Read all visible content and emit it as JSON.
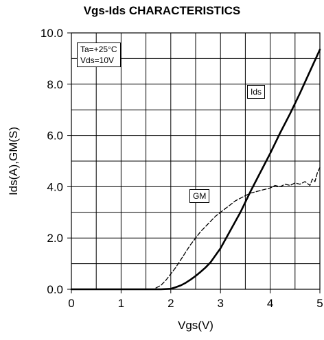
{
  "chart_data": {
    "type": "line",
    "title": "Vgs-Ids CHARACTERISTICS",
    "xlabel": "Vgs(V)",
    "ylabel": "Ids(A),GM(S)",
    "xlim": [
      0,
      5
    ],
    "ylim": [
      0,
      10
    ],
    "x_ticks": [
      "0",
      "1",
      "2",
      "3",
      "4",
      "5"
    ],
    "y_ticks": [
      "0.0",
      "2.0",
      "4.0",
      "6.0",
      "8.0",
      "10.0"
    ],
    "grid": true,
    "conditions": [
      "Ta=+25°C",
      "Vds=10V"
    ],
    "series": [
      {
        "name": "Ids",
        "style": "solid",
        "color": "#000000",
        "x": [
          0,
          1.0,
          1.8,
          2.0,
          2.1,
          2.2,
          2.3,
          2.4,
          2.5,
          2.6,
          2.7,
          2.8,
          3.0,
          3.2,
          3.4,
          3.6,
          3.8,
          4.0,
          4.2,
          4.4,
          4.6,
          4.8,
          5.0
        ],
        "values": [
          0,
          0,
          0,
          0.02,
          0.08,
          0.15,
          0.25,
          0.38,
          0.52,
          0.68,
          0.85,
          1.05,
          1.6,
          2.3,
          3.0,
          3.8,
          4.55,
          5.3,
          6.1,
          6.85,
          7.65,
          8.5,
          9.35
        ]
      },
      {
        "name": "GM",
        "style": "dashed",
        "color": "#000000",
        "x": [
          1.7,
          1.8,
          1.9,
          2.0,
          2.1,
          2.2,
          2.3,
          2.4,
          2.5,
          2.6,
          2.7,
          2.8,
          2.9,
          3.0,
          3.1,
          3.2,
          3.3,
          3.4,
          3.5,
          3.6,
          3.7,
          3.8,
          3.9,
          4.0,
          4.1,
          4.2,
          4.3,
          4.4,
          4.5,
          4.6,
          4.7,
          4.8,
          4.85,
          4.9,
          4.95,
          5.0
        ],
        "values": [
          0.05,
          0.15,
          0.35,
          0.6,
          0.85,
          1.15,
          1.45,
          1.75,
          2.0,
          2.25,
          2.45,
          2.65,
          2.85,
          3.0,
          3.15,
          3.3,
          3.45,
          3.55,
          3.65,
          3.75,
          3.8,
          3.85,
          3.9,
          3.95,
          4.05,
          4.0,
          4.1,
          4.05,
          4.15,
          4.1,
          4.2,
          4.05,
          4.3,
          4.2,
          4.55,
          4.75
        ]
      }
    ],
    "annotations": [
      {
        "text": "Ids",
        "target": "Ids"
      },
      {
        "text": "GM",
        "target": "GM"
      }
    ]
  }
}
